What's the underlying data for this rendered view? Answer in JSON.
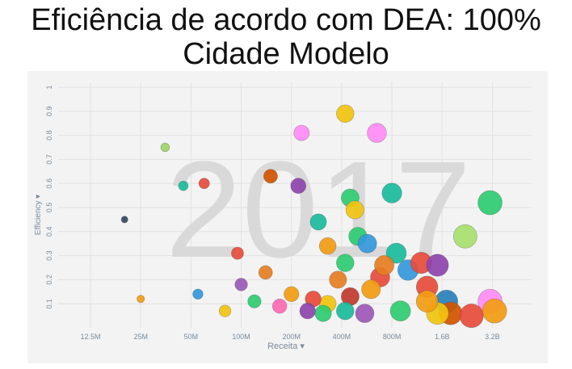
{
  "title_line1": "Eficiência de acordo com DEA: 100%",
  "title_line2": "Cidade Modelo",
  "chart_data": {
    "type": "scatter",
    "watermark": "2017",
    "xlabel": "Receita",
    "ylabel": "Efficiency",
    "x_scale": "log",
    "xlim": [
      8000000,
      5500000000
    ],
    "ylim": [
      0,
      1.02
    ],
    "x_ticks": [
      {
        "value": 12500000,
        "label": "12.5M"
      },
      {
        "value": 25000000,
        "label": "25M"
      },
      {
        "value": 50000000,
        "label": "50M"
      },
      {
        "value": 100000000,
        "label": "100M"
      },
      {
        "value": 200000000,
        "label": "200M"
      },
      {
        "value": 400000000,
        "label": "400M"
      },
      {
        "value": 800000000,
        "label": "800M"
      },
      {
        "value": 1600000000,
        "label": "1.6B"
      },
      {
        "value": 3200000000,
        "label": "3.2B"
      }
    ],
    "y_ticks": [
      {
        "value": 0.1,
        "label": "0.1"
      },
      {
        "value": 0.2,
        "label": "0.2"
      },
      {
        "value": 0.3,
        "label": "0.3"
      },
      {
        "value": 0.4,
        "label": "0.4"
      },
      {
        "value": 0.5,
        "label": "0.5"
      },
      {
        "value": 0.6,
        "label": "0.6"
      },
      {
        "value": 0.7,
        "label": "0.7"
      },
      {
        "value": 0.8,
        "label": "0.8"
      },
      {
        "value": 0.9,
        "label": "0.9"
      },
      {
        "value": 1,
        "label": "1"
      }
    ],
    "grid": true,
    "legend": "none",
    "colors": {
      "background": "#f3f3f3",
      "watermark": "#d9d9d9",
      "axis_text": "#7a8a9a",
      "bubble_palette": [
        "#e74c3c",
        "#2ecc71",
        "#f39c12",
        "#9b59b6",
        "#3498db",
        "#1abc9c",
        "#e67e22",
        "#34495e",
        "#f1c40f",
        "#ff69b4",
        "#27ae60",
        "#c0392b",
        "#8e44ad",
        "#16a085",
        "#d35400",
        "#95a5a6",
        "#2980b9",
        "#a0d468"
      ]
    },
    "series": [
      {
        "points": [
          {
            "x": 3100000000,
            "y": 0.52,
            "color": "#2ecc71"
          },
          {
            "x": 2200000000,
            "y": 0.38,
            "color": "#a8e06e"
          },
          {
            "x": 1000000000,
            "y": 0.24,
            "color": "#3498db"
          },
          {
            "x": 1300000000,
            "y": 0.17,
            "color": "#e74c3c"
          },
          {
            "x": 1700000000,
            "y": 0.11,
            "color": "#2980b9"
          },
          {
            "x": 1800000000,
            "y": 0.06,
            "color": "#d35400"
          },
          {
            "x": 3100000000,
            "y": 0.11,
            "color": "#ff8cf5"
          },
          {
            "x": 3300000000,
            "y": 0.07,
            "color": "#f39c12"
          },
          {
            "x": 2400000000,
            "y": 0.05,
            "color": "#e74c3c"
          },
          {
            "x": 1500000000,
            "y": 0.06,
            "color": "#f1c40f"
          },
          {
            "x": 1300000000,
            "y": 0.11,
            "color": "#f39c12"
          },
          {
            "x": 1200000000,
            "y": 0.27,
            "color": "#e74c3c"
          },
          {
            "x": 1500000000,
            "y": 0.26,
            "color": "#8e44ad"
          },
          {
            "x": 850000000,
            "y": 0.31,
            "color": "#1abc9c"
          },
          {
            "x": 900000000,
            "y": 0.07,
            "color": "#2ecc71"
          },
          {
            "x": 650000000,
            "y": 0.81,
            "color": "#ff8cf5"
          },
          {
            "x": 800000000,
            "y": 0.56,
            "color": "#1abc9c"
          },
          {
            "x": 420000000,
            "y": 0.89,
            "color": "#f1c40f"
          },
          {
            "x": 450000000,
            "y": 0.54,
            "color": "#2ecc71"
          },
          {
            "x": 480000000,
            "y": 0.49,
            "color": "#f1c40f"
          },
          {
            "x": 500000000,
            "y": 0.38,
            "color": "#2ecc71"
          },
          {
            "x": 570000000,
            "y": 0.35,
            "color": "#3498db"
          },
          {
            "x": 420000000,
            "y": 0.27,
            "color": "#2ecc71"
          },
          {
            "x": 680000000,
            "y": 0.21,
            "color": "#e74c3c"
          },
          {
            "x": 720000000,
            "y": 0.26,
            "color": "#e67e22"
          },
          {
            "x": 600000000,
            "y": 0.16,
            "color": "#f39c12"
          },
          {
            "x": 550000000,
            "y": 0.06,
            "color": "#9b59b6"
          },
          {
            "x": 450000000,
            "y": 0.13,
            "color": "#c0392b"
          },
          {
            "x": 420000000,
            "y": 0.07,
            "color": "#1abc9c"
          },
          {
            "x": 380000000,
            "y": 0.2,
            "color": "#e67e22"
          },
          {
            "x": 330000000,
            "y": 0.34,
            "color": "#f39c12"
          },
          {
            "x": 330000000,
            "y": 0.1,
            "color": "#f1c40f"
          },
          {
            "x": 310000000,
            "y": 0.06,
            "color": "#2ecc71"
          },
          {
            "x": 290000000,
            "y": 0.44,
            "color": "#1abc9c"
          },
          {
            "x": 270000000,
            "y": 0.12,
            "color": "#e74c3c"
          },
          {
            "x": 250000000,
            "y": 0.07,
            "color": "#8e44ad"
          },
          {
            "x": 230000000,
            "y": 0.81,
            "color": "#ff8cf5"
          },
          {
            "x": 220000000,
            "y": 0.59,
            "color": "#8e44ad"
          },
          {
            "x": 200000000,
            "y": 0.14,
            "color": "#f39c12"
          },
          {
            "x": 170000000,
            "y": 0.09,
            "color": "#ff69b4"
          },
          {
            "x": 150000000,
            "y": 0.63,
            "color": "#d35400"
          },
          {
            "x": 140000000,
            "y": 0.23,
            "color": "#e67e22"
          },
          {
            "x": 120000000,
            "y": 0.11,
            "color": "#2ecc71"
          },
          {
            "x": 95000000,
            "y": 0.31,
            "color": "#e74c3c"
          },
          {
            "x": 100000000,
            "y": 0.18,
            "color": "#9b59b6"
          },
          {
            "x": 80000000,
            "y": 0.07,
            "color": "#f1c40f"
          },
          {
            "x": 60000000,
            "y": 0.6,
            "color": "#e74c3c"
          },
          {
            "x": 55000000,
            "y": 0.14,
            "color": "#3498db"
          },
          {
            "x": 45000000,
            "y": 0.59,
            "color": "#1abc9c"
          },
          {
            "x": 35000000,
            "y": 0.75,
            "color": "#a0d468"
          },
          {
            "x": 25000000,
            "y": 0.12,
            "color": "#f39c12"
          },
          {
            "x": 20000000,
            "y": 0.45,
            "color": "#34495e"
          }
        ]
      }
    ]
  }
}
